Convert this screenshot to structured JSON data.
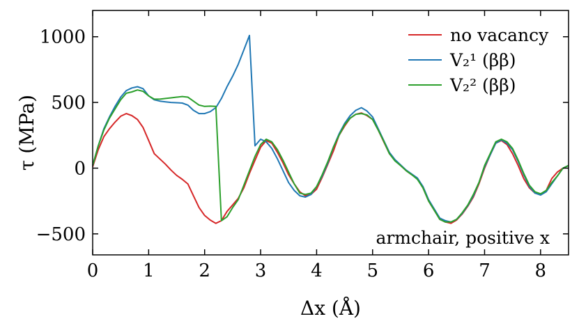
{
  "chart_data": {
    "type": "line",
    "title": "",
    "xlabel": "Δx (Å)",
    "ylabel": "τ (MPa)",
    "xlim": [
      0,
      8.5
    ],
    "ylim": [
      -660,
      1200
    ],
    "xticks": [
      0,
      1,
      2,
      3,
      4,
      5,
      6,
      7,
      8
    ],
    "yticks": [
      -500,
      0,
      500,
      1000
    ],
    "ytick_labels": [
      "−500",
      "0",
      "500",
      "1000"
    ],
    "grid": false,
    "legend_position": "top-right",
    "annotation": "armchair, positive x",
    "series": [
      {
        "name": "no vacancy",
        "color": "#d62728",
        "x": [
          0,
          0.1,
          0.2,
          0.3,
          0.4,
          0.5,
          0.6,
          0.7,
          0.8,
          0.9,
          1.0,
          1.1,
          1.2,
          1.3,
          1.4,
          1.5,
          1.6,
          1.7,
          1.8,
          1.9,
          2.0,
          2.1,
          2.2,
          2.3,
          2.4,
          2.5,
          2.6,
          2.7,
          2.8,
          2.9,
          3.0,
          3.1,
          3.2,
          3.3,
          3.4,
          3.5,
          3.6,
          3.7,
          3.8,
          3.9,
          4.0,
          4.1,
          4.2,
          4.3,
          4.4,
          4.5,
          4.6,
          4.7,
          4.8,
          4.9,
          5.0,
          5.1,
          5.2,
          5.3,
          5.4,
          5.5,
          5.6,
          5.7,
          5.8,
          5.9,
          6.0,
          6.1,
          6.2,
          6.3,
          6.4,
          6.5,
          6.6,
          6.7,
          6.8,
          6.9,
          7.0,
          7.1,
          7.2,
          7.3,
          7.4,
          7.5,
          7.6,
          7.7,
          7.8,
          7.9,
          8.0,
          8.1,
          8.2,
          8.3,
          8.4,
          8.5
        ],
        "y": [
          10,
          140,
          240,
          300,
          350,
          395,
          415,
          400,
          370,
          310,
          210,
          110,
          70,
          30,
          -15,
          -55,
          -85,
          -120,
          -210,
          -300,
          -360,
          -395,
          -420,
          -400,
          -330,
          -280,
          -230,
          -150,
          -40,
          60,
          160,
          210,
          190,
          120,
          40,
          -50,
          -120,
          -180,
          -210,
          -200,
          -160,
          -70,
          30,
          130,
          250,
          320,
          380,
          410,
          420,
          400,
          370,
          290,
          200,
          110,
          60,
          20,
          -20,
          -50,
          -80,
          -150,
          -250,
          -320,
          -390,
          -410,
          -420,
          -395,
          -350,
          -290,
          -220,
          -120,
          0,
          100,
          190,
          210,
          180,
          110,
          20,
          -80,
          -150,
          -190,
          -200,
          -170,
          -80,
          -30,
          0,
          20
        ]
      },
      {
        "name": "V₂¹ (ββ)",
        "color": "#1f77b4",
        "x": [
          0,
          0.1,
          0.2,
          0.3,
          0.4,
          0.5,
          0.6,
          0.7,
          0.8,
          0.9,
          1.0,
          1.1,
          1.2,
          1.3,
          1.4,
          1.5,
          1.6,
          1.7,
          1.8,
          1.9,
          2.0,
          2.1,
          2.2,
          2.3,
          2.4,
          2.5,
          2.6,
          2.7,
          2.8,
          2.9,
          3.0,
          3.1,
          3.2,
          3.3,
          3.4,
          3.5,
          3.6,
          3.7,
          3.8,
          3.9,
          4.0,
          4.1,
          4.2,
          4.3,
          4.4,
          4.5,
          4.6,
          4.7,
          4.8,
          4.9,
          5.0,
          5.1,
          5.2,
          5.3,
          5.4,
          5.5,
          5.6,
          5.7,
          5.8,
          5.9,
          6.0,
          6.1,
          6.2,
          6.3,
          6.4,
          6.5,
          6.6,
          6.7,
          6.8,
          6.9,
          7.0,
          7.1,
          7.2,
          7.3,
          7.4,
          7.5,
          7.6,
          7.7,
          7.8,
          7.9,
          8.0,
          8.1,
          8.2,
          8.3,
          8.4,
          8.5
        ],
        "y": [
          20,
          170,
          300,
          390,
          470,
          540,
          590,
          610,
          620,
          605,
          550,
          520,
          510,
          505,
          500,
          498,
          495,
          480,
          440,
          415,
          415,
          430,
          460,
          530,
          620,
          700,
          790,
          900,
          1010,
          170,
          220,
          200,
          150,
          70,
          -20,
          -110,
          -170,
          -210,
          -220,
          -200,
          -140,
          -60,
          40,
          160,
          260,
          340,
          400,
          440,
          460,
          435,
          390,
          300,
          210,
          120,
          65,
          25,
          -15,
          -45,
          -75,
          -140,
          -240,
          -310,
          -380,
          -400,
          -410,
          -390,
          -345,
          -285,
          -210,
          -110,
          10,
          100,
          190,
          215,
          190,
          140,
          50,
          -50,
          -140,
          -190,
          -205,
          -180,
          -120,
          -60,
          0,
          20
        ]
      },
      {
        "name": "V₂² (ββ)",
        "color": "#2ca02c",
        "x": [
          0,
          0.1,
          0.2,
          0.3,
          0.4,
          0.5,
          0.6,
          0.7,
          0.8,
          0.9,
          1.0,
          1.1,
          1.2,
          1.3,
          1.4,
          1.5,
          1.6,
          1.7,
          1.8,
          1.9,
          2.0,
          2.1,
          2.2,
          2.3,
          2.4,
          2.5,
          2.6,
          2.7,
          2.8,
          2.9,
          3.0,
          3.1,
          3.2,
          3.3,
          3.4,
          3.5,
          3.6,
          3.7,
          3.8,
          3.9,
          4.0,
          4.1,
          4.2,
          4.3,
          4.4,
          4.5,
          4.6,
          4.7,
          4.8,
          4.9,
          5.0,
          5.1,
          5.2,
          5.3,
          5.4,
          5.5,
          5.6,
          5.7,
          5.8,
          5.9,
          6.0,
          6.1,
          6.2,
          6.3,
          6.4,
          6.5,
          6.6,
          6.7,
          6.8,
          6.9,
          7.0,
          7.1,
          7.2,
          7.3,
          7.4,
          7.5,
          7.6,
          7.7,
          7.8,
          7.9,
          8.0,
          8.1,
          8.2,
          8.3,
          8.4,
          8.5
        ],
        "y": [
          20,
          170,
          290,
          380,
          450,
          520,
          570,
          580,
          595,
          585,
          550,
          525,
          525,
          530,
          535,
          540,
          545,
          540,
          510,
          480,
          470,
          472,
          470,
          -400,
          -370,
          -300,
          -240,
          -130,
          -20,
          90,
          180,
          220,
          200,
          140,
          60,
          -30,
          -120,
          -190,
          -200,
          -190,
          -140,
          -50,
          50,
          160,
          250,
          330,
          380,
          410,
          415,
          405,
          370,
          290,
          205,
          110,
          55,
          20,
          -20,
          -50,
          -85,
          -150,
          -250,
          -320,
          -390,
          -410,
          -410,
          -390,
          -340,
          -280,
          -200,
          -110,
          20,
          110,
          200,
          220,
          200,
          150,
          60,
          -40,
          -130,
          -180,
          -195,
          -170,
          -110,
          -60,
          0,
          20
        ]
      }
    ]
  }
}
